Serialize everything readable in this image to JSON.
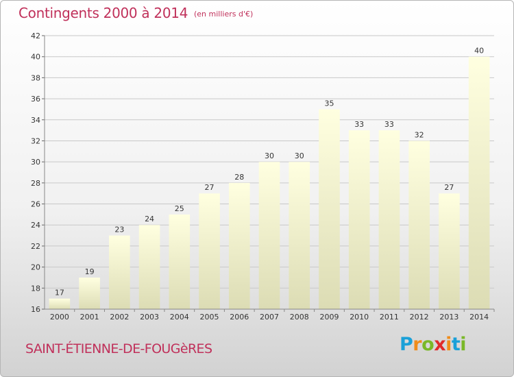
{
  "title": "Contingents 2000 à 2014",
  "subtitle": "(en milliers d'€)",
  "commune": "SAINT-ÉTIENNE-DE-FOUGèRES",
  "logo": {
    "letters": [
      "P",
      "r",
      "o",
      "x",
      "i",
      "t",
      "i"
    ],
    "colors": [
      "#1aa0d8",
      "#f08c1a",
      "#7ab828",
      "#e02a2a",
      "#f08c1a",
      "#1aa0d8",
      "#7ab828"
    ]
  },
  "colors": {
    "text_accent": "#c0305a",
    "bar_light": "#ffffe0",
    "bar_dark": "#dcdcb4",
    "grid": "#c8c8c8",
    "axis_text": "#333333"
  },
  "chart_data": {
    "type": "bar",
    "title": "Contingents 2000 à 2014",
    "subtitle": "(en milliers d'€)",
    "categories": [
      "2000",
      "2001",
      "2002",
      "2003",
      "2004",
      "2005",
      "2006",
      "2007",
      "2008",
      "2009",
      "2010",
      "2011",
      "2012",
      "2013",
      "2014"
    ],
    "values": [
      17,
      19,
      23,
      24,
      25,
      27,
      28,
      30,
      30,
      35,
      33,
      33,
      32,
      27,
      40
    ],
    "ylim": [
      16,
      42
    ],
    "yticks": [
      16,
      18,
      20,
      22,
      24,
      26,
      28,
      30,
      32,
      34,
      36,
      38,
      40,
      42
    ],
    "grid": true,
    "data_labels": true
  }
}
